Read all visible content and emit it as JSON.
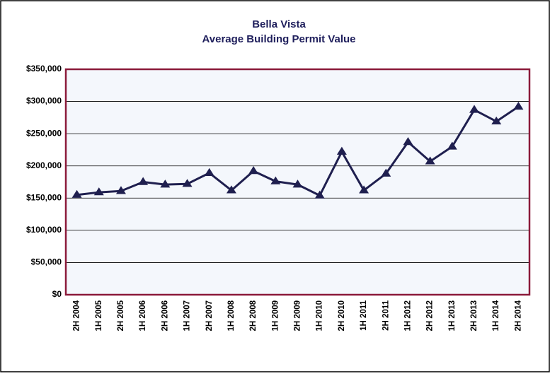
{
  "chart_data": {
    "type": "line",
    "title": "Bella Vista",
    "subtitle": "Average Building Permit Value",
    "categories": [
      "2H 2004",
      "1H 2005",
      "2H 2005",
      "1H 2006",
      "2H 2006",
      "1H 2007",
      "2H 2007",
      "1H 2008",
      "2H 2008",
      "1H 2009",
      "2H 2009",
      "1H 2010",
      "2H 2010",
      "1H 2011",
      "2H 2011",
      "1H 2012",
      "2H 2012",
      "1H 2013",
      "2H 2013",
      "1H 2014",
      "2H 2014"
    ],
    "series": [
      {
        "name": "Average Building Permit Value",
        "color": "#1f1f4f",
        "values": [
          155000,
          159000,
          161000,
          175000,
          171000,
          172000,
          189000,
          162000,
          192000,
          176000,
          171000,
          154000,
          222000,
          162000,
          188000,
          237000,
          207000,
          230000,
          287000,
          269000,
          292000
        ]
      }
    ],
    "ylim": [
      0,
      350000
    ],
    "yticks": [
      {
        "value": 0,
        "label": "$0"
      },
      {
        "value": 50000,
        "label": "$50,000"
      },
      {
        "value": 100000,
        "label": "$100,000"
      },
      {
        "value": 150000,
        "label": "$150,000"
      },
      {
        "value": 200000,
        "label": "$200,000"
      },
      {
        "value": 250000,
        "label": "$250,000"
      },
      {
        "value": 300000,
        "label": "$300,000"
      },
      {
        "value": 350000,
        "label": "$350,000"
      }
    ],
    "grid": true,
    "marker": "triangle"
  }
}
